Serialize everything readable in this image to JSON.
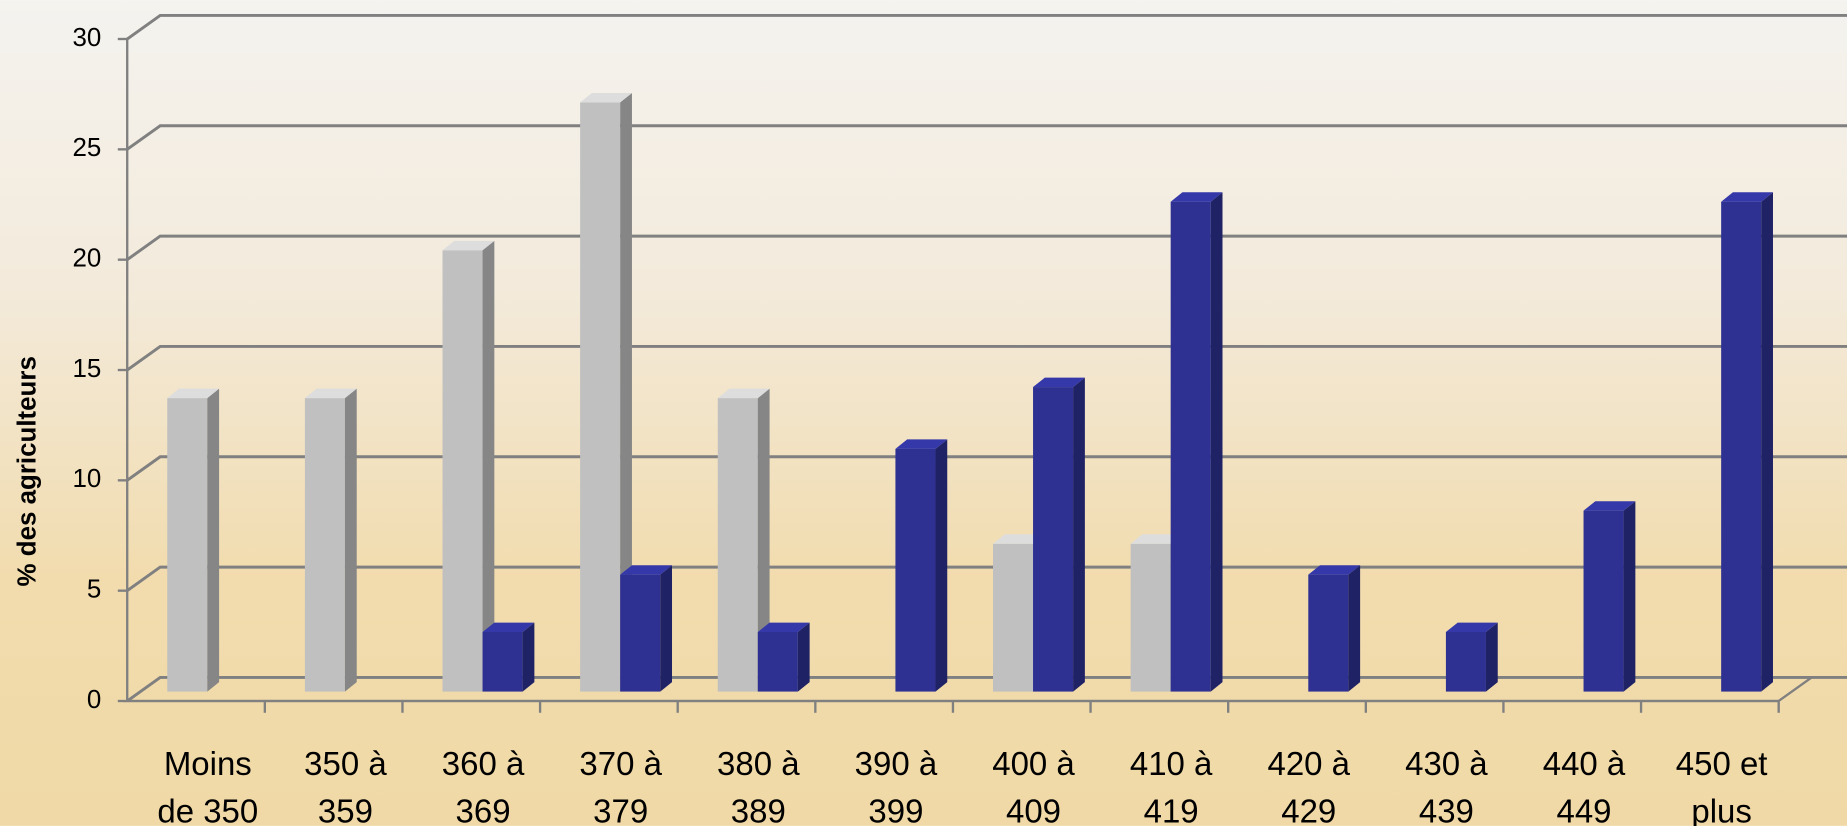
{
  "chart_data": {
    "type": "bar3d",
    "y_label": "% des agriculteurs",
    "categories": [
      "Moins de 350",
      "350 à 359",
      "360 à 369",
      "370 à 379",
      "380 à 389",
      "390 à 399",
      "400 à 409",
      "410 à 419",
      "420 à 429",
      "430 à 439",
      "440 à 449",
      "450 et plus"
    ],
    "series": [
      {
        "color": "#c0c0c0",
        "values": [
          13.3,
          13.3,
          20,
          26.7,
          13.3,
          null,
          6.7,
          6.7,
          null,
          null,
          null,
          null
        ]
      },
      {
        "color": "#2e3192",
        "values": [
          null,
          null,
          2.7,
          5.3,
          2.7,
          11,
          13.8,
          22.2,
          5.3,
          2.7,
          8.2,
          22.2
        ]
      }
    ],
    "ylim": [
      0,
      30
    ],
    "yticks": [
      0,
      5,
      10,
      15,
      20,
      25,
      30
    ],
    "grid": true
  }
}
